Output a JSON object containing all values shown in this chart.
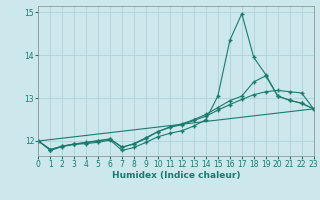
{
  "xlabel": "Humidex (Indice chaleur)",
  "xlim": [
    0,
    23
  ],
  "ylim": [
    11.65,
    15.15
  ],
  "yticks": [
    12,
    13,
    14,
    15
  ],
  "xticks": [
    0,
    1,
    2,
    3,
    4,
    5,
    6,
    7,
    8,
    9,
    10,
    11,
    12,
    13,
    14,
    15,
    16,
    17,
    18,
    19,
    20,
    21,
    22,
    23
  ],
  "bg_color": "#cde8ed",
  "grid_color": "#a8cfd6",
  "line_color": "#1a7a6e",
  "lines": [
    {
      "x": [
        0,
        1,
        2,
        3,
        4,
        5,
        6,
        7,
        8,
        9,
        10,
        11,
        12,
        13,
        14,
        15,
        16,
        17,
        18,
        19,
        20,
        21,
        22,
        23
      ],
      "y": [
        12.0,
        11.78,
        11.87,
        11.92,
        11.94,
        11.97,
        12.02,
        11.78,
        11.85,
        11.97,
        12.1,
        12.18,
        12.24,
        12.35,
        12.5,
        13.05,
        14.35,
        14.97,
        13.95,
        13.55,
        13.05,
        12.95,
        12.88,
        12.75
      ]
    },
    {
      "x": [
        0,
        23
      ],
      "y": [
        12.0,
        12.75
      ]
    },
    {
      "x": [
        0,
        1,
        2,
        3,
        4,
        5,
        6,
        7,
        8,
        9,
        10,
        11,
        12,
        13,
        14,
        15,
        16,
        17,
        18,
        19,
        20,
        21,
        22,
        23
      ],
      "y": [
        12.0,
        11.8,
        11.88,
        11.93,
        11.96,
        12.0,
        12.04,
        11.86,
        11.93,
        12.06,
        12.22,
        12.32,
        12.38,
        12.48,
        12.58,
        12.72,
        12.85,
        12.97,
        13.08,
        13.15,
        13.18,
        13.15,
        13.12,
        12.75
      ]
    },
    {
      "x": [
        0,
        1,
        2,
        3,
        4,
        5,
        6,
        7,
        8,
        9,
        10,
        11,
        12,
        13,
        14,
        15,
        16,
        17,
        18,
        19,
        20,
        21,
        22,
        23
      ],
      "y": [
        12.0,
        11.8,
        11.88,
        11.93,
        11.97,
        12.01,
        12.05,
        11.85,
        11.94,
        12.08,
        12.22,
        12.33,
        12.4,
        12.5,
        12.62,
        12.78,
        12.94,
        13.05,
        13.38,
        13.52,
        13.05,
        12.95,
        12.88,
        12.75
      ]
    }
  ]
}
